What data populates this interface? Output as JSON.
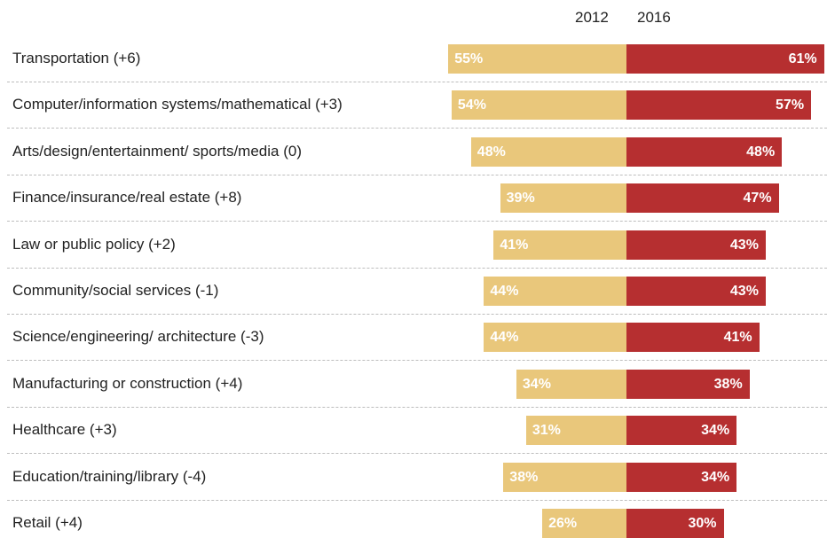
{
  "chart_data": {
    "type": "bar",
    "orientation": "horizontal-diverging",
    "series": [
      {
        "name": "2012",
        "color": "#e9c77b",
        "side": "left",
        "values": [
          55,
          54,
          48,
          39,
          41,
          44,
          44,
          34,
          31,
          38,
          26
        ]
      },
      {
        "name": "2016",
        "color": "#b62f30",
        "side": "right",
        "values": [
          61,
          57,
          48,
          47,
          43,
          43,
          41,
          38,
          34,
          34,
          30
        ]
      }
    ],
    "categories": [
      "Transportation (+6)",
      "Computer/information systems/mathematical (+3)",
      "Arts/design/entertainment/ sports/media (0)",
      "Finance/insurance/real estate (+8)",
      "Law or public policy (+2)",
      "Community/social services (-1)",
      "Science/engineering/ architecture (-3)",
      "Manufacturing or construction (+4)",
      "Healthcare (+3)",
      "Education/training/library (-4)",
      "Retail (+4)"
    ],
    "value_labels": {
      "2012": [
        "55%",
        "54%",
        "48%",
        "39%",
        "41%",
        "44%",
        "44%",
        "34%",
        "31%",
        "38%",
        "26%"
      ],
      "2016": [
        "61%",
        "57%",
        "48%",
        "47%",
        "43%",
        "43%",
        "41%",
        "38%",
        "34%",
        "34%",
        "30%"
      ]
    },
    "title": "",
    "xlabel": "",
    "ylabel": "",
    "grid": false,
    "legend": "top"
  }
}
